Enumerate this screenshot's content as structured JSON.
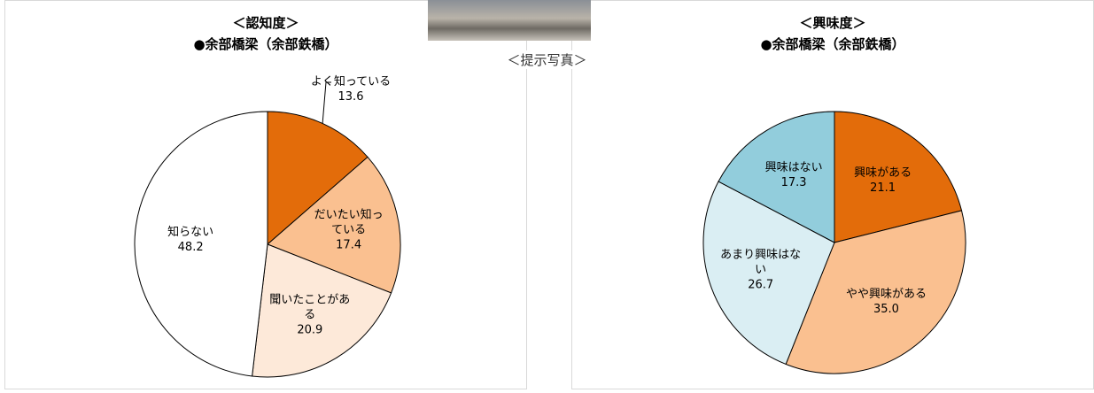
{
  "photo_caption": "＜提示写真＞",
  "chart_data": [
    {
      "type": "pie",
      "title": "＜認知度＞",
      "subtitle": "●余部橋梁（余部鉄橋）",
      "categories": [
        "よく知っている",
        "だいたい知っている",
        "聞いたことがある",
        "知らない"
      ],
      "values": [
        13.6,
        17.4,
        20.9,
        48.2
      ],
      "value_labels": [
        "13.6",
        "17.4",
        "20.9",
        "48.2"
      ],
      "colors": [
        "#e36c0a",
        "#fac090",
        "#fde9d9",
        "#ffffff"
      ]
    },
    {
      "type": "pie",
      "title": "＜興味度＞",
      "subtitle": "●余部橋梁（余部鉄橋）",
      "categories": [
        "興味がある",
        "やや興味がある",
        "あまり興味はない",
        "興味はない"
      ],
      "values": [
        21.1,
        35.0,
        26.7,
        17.3
      ],
      "value_labels": [
        "21.1",
        "35.0",
        "26.7",
        "17.3"
      ],
      "colors": [
        "#e36c0a",
        "#fac090",
        "#daeef3",
        "#92cddc"
      ]
    }
  ]
}
